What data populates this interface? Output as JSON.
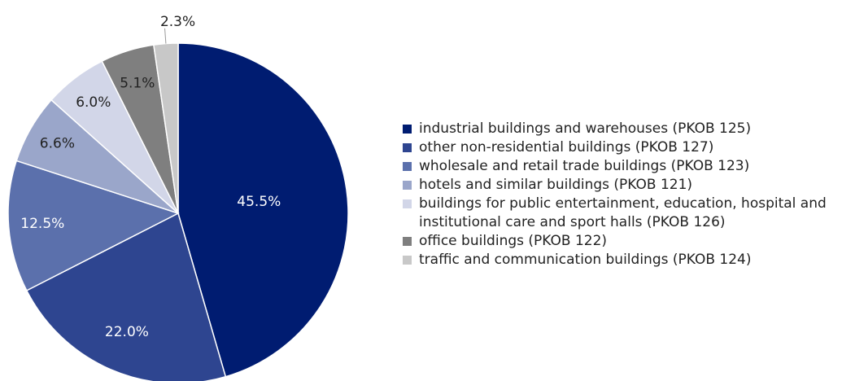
{
  "chart_data": {
    "type": "pie",
    "slices": [
      {
        "label": "industrial buildings and warehouses (PKOB 125)",
        "value": 45.5,
        "value_label": "45.5%",
        "color": "#001c71"
      },
      {
        "label": "other non-residential buildings (PKOB 127)",
        "value": 22.0,
        "value_label": "22.0%",
        "color": "#2e4590"
      },
      {
        "label": "wholesale and retail trade buildings (PKOB 123)",
        "value": 12.5,
        "value_label": "12.5%",
        "color": "#5b70ac"
      },
      {
        "label": "hotels and similar buildings (PKOB 121)",
        "value": 6.6,
        "value_label": "6.6%",
        "color": "#9aa6ca"
      },
      {
        "label": "buildings for public entertainment, education, hospital and institutional care and sport halls (PKOB 126)",
        "value": 6.0,
        "value_label": "6.0%",
        "color": "#d2d6e8"
      },
      {
        "label": "office buildings (PKOB 122)",
        "value": 5.1,
        "value_label": "5.1%",
        "color": "#7f7f7f"
      },
      {
        "label": "traffic and communication buildings (PKOB 124)",
        "value": 2.3,
        "value_label": "2.3%",
        "color": "#c8c8c8"
      }
    ],
    "start": "12 o'clock",
    "direction": "clockwise",
    "legend_position": "right"
  }
}
